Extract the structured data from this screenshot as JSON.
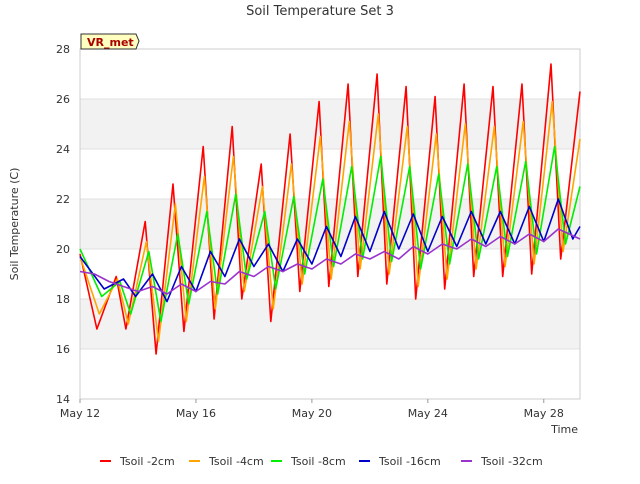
{
  "chart_data": {
    "type": "line",
    "title": "Soil Temperature Set 3",
    "xlabel": "Time",
    "ylabel": "Soil Temperature (C)",
    "station_badge": "VR_met",
    "ylim": [
      14,
      28
    ],
    "yticks": [
      14,
      16,
      18,
      20,
      22,
      24,
      26,
      28
    ],
    "xlim": [
      "2024-05-12",
      "2024-05-29 06:00"
    ],
    "xtick_dates": [
      "2024-05-12",
      "2024-05-16",
      "2024-05-20",
      "2024-05-24",
      "2024-05-28"
    ],
    "xtick_labels": [
      "May 12",
      "May 16",
      "May 20",
      "May 24",
      "May 28"
    ],
    "grid": "horizontal bands",
    "legend_position": "bottom",
    "series": [
      {
        "name": "Tsoil -2cm",
        "color": "#ff0000",
        "x": [
          "2024-05-12 00:00",
          "2024-05-12 14:00",
          "2024-05-13 06:00",
          "2024-05-13 14:00",
          "2024-05-14 06:00",
          "2024-05-14 15:00",
          "2024-05-15 05:00",
          "2024-05-15 14:00",
          "2024-05-16 06:00",
          "2024-05-16 15:00",
          "2024-05-17 06:00",
          "2024-05-17 14:00",
          "2024-05-18 06:00",
          "2024-05-18 14:00",
          "2024-05-19 06:00",
          "2024-05-19 14:00",
          "2024-05-20 06:00",
          "2024-05-20 14:00",
          "2024-05-21 06:00",
          "2024-05-21 14:00",
          "2024-05-22 06:00",
          "2024-05-22 14:00",
          "2024-05-23 06:00",
          "2024-05-23 14:00",
          "2024-05-24 06:00",
          "2024-05-24 14:00",
          "2024-05-25 06:00",
          "2024-05-25 14:00",
          "2024-05-26 06:00",
          "2024-05-26 14:00",
          "2024-05-27 06:00",
          "2024-05-27 14:00",
          "2024-05-28 06:00",
          "2024-05-28 14:00",
          "2024-05-29 06:00"
        ],
        "values": [
          19.8,
          16.8,
          18.9,
          16.8,
          21.1,
          15.8,
          22.6,
          16.7,
          24.1,
          17.2,
          24.9,
          18.0,
          23.4,
          17.1,
          24.6,
          18.3,
          25.9,
          18.5,
          26.6,
          18.9,
          27.0,
          18.6,
          26.5,
          18.0,
          26.1,
          18.4,
          26.6,
          18.9,
          26.5,
          18.9,
          26.6,
          19.0,
          27.4,
          19.6,
          26.3
        ]
      },
      {
        "name": "Tsoil -4cm",
        "color": "#ffa500",
        "x": [
          "2024-05-12 00:00",
          "2024-05-12 16:00",
          "2024-05-13 07:00",
          "2024-05-13 16:00",
          "2024-05-14 07:00",
          "2024-05-14 17:00",
          "2024-05-15 07:00",
          "2024-05-15 16:00",
          "2024-05-16 07:00",
          "2024-05-16 16:00",
          "2024-05-17 07:00",
          "2024-05-17 16:00",
          "2024-05-18 07:00",
          "2024-05-18 16:00",
          "2024-05-19 07:00",
          "2024-05-19 16:00",
          "2024-05-20 07:00",
          "2024-05-20 16:00",
          "2024-05-21 07:00",
          "2024-05-21 16:00",
          "2024-05-22 07:00",
          "2024-05-22 16:00",
          "2024-05-23 07:00",
          "2024-05-23 16:00",
          "2024-05-24 07:00",
          "2024-05-24 16:00",
          "2024-05-25 07:00",
          "2024-05-25 16:00",
          "2024-05-26 07:00",
          "2024-05-26 16:00",
          "2024-05-27 07:00",
          "2024-05-27 16:00",
          "2024-05-28 07:00",
          "2024-05-28 16:00",
          "2024-05-29 06:00"
        ],
        "values": [
          19.7,
          17.4,
          18.8,
          17.0,
          20.3,
          16.3,
          21.8,
          17.1,
          22.9,
          17.6,
          23.7,
          18.3,
          22.5,
          17.6,
          23.4,
          18.6,
          24.5,
          18.8,
          25.1,
          19.2,
          25.4,
          19.0,
          24.9,
          18.5,
          24.6,
          18.8,
          25.0,
          19.2,
          24.9,
          19.3,
          25.1,
          19.4,
          25.9,
          19.9,
          24.4
        ]
      },
      {
        "name": "Tsoil -8cm",
        "color": "#00ee00",
        "x": [
          "2024-05-12 00:00",
          "2024-05-12 18:00",
          "2024-05-13 09:00",
          "2024-05-13 18:00",
          "2024-05-14 09:00",
          "2024-05-14 19:00",
          "2024-05-15 09:00",
          "2024-05-15 18:00",
          "2024-05-16 09:00",
          "2024-05-16 18:00",
          "2024-05-17 09:00",
          "2024-05-17 18:00",
          "2024-05-18 09:00",
          "2024-05-18 18:00",
          "2024-05-19 09:00",
          "2024-05-19 18:00",
          "2024-05-20 09:00",
          "2024-05-20 18:00",
          "2024-05-21 09:00",
          "2024-05-21 18:00",
          "2024-05-22 09:00",
          "2024-05-22 18:00",
          "2024-05-23 09:00",
          "2024-05-23 18:00",
          "2024-05-24 09:00",
          "2024-05-24 18:00",
          "2024-05-25 09:00",
          "2024-05-25 18:00",
          "2024-05-26 09:00",
          "2024-05-26 18:00",
          "2024-05-27 09:00",
          "2024-05-27 18:00",
          "2024-05-28 09:00",
          "2024-05-28 18:00",
          "2024-05-29 06:00"
        ],
        "values": [
          20.0,
          18.1,
          18.7,
          17.4,
          19.9,
          17.1,
          20.6,
          17.8,
          21.5,
          18.2,
          22.2,
          18.8,
          21.5,
          18.4,
          22.1,
          19.0,
          22.8,
          19.3,
          23.3,
          19.6,
          23.7,
          19.5,
          23.3,
          19.2,
          23.0,
          19.4,
          23.4,
          19.6,
          23.3,
          19.7,
          23.5,
          19.8,
          24.1,
          20.2,
          22.5
        ]
      },
      {
        "name": "Tsoil -16cm",
        "color": "#0000cc",
        "x": [
          "2024-05-12 00:00",
          "2024-05-12 20:00",
          "2024-05-13 12:00",
          "2024-05-13 22:00",
          "2024-05-14 12:00",
          "2024-05-15 00:00",
          "2024-05-15 12:00",
          "2024-05-16 00:00",
          "2024-05-16 12:00",
          "2024-05-17 00:00",
          "2024-05-17 12:00",
          "2024-05-18 00:00",
          "2024-05-18 12:00",
          "2024-05-19 00:00",
          "2024-05-19 12:00",
          "2024-05-20 00:00",
          "2024-05-20 12:00",
          "2024-05-21 00:00",
          "2024-05-21 12:00",
          "2024-05-22 00:00",
          "2024-05-22 12:00",
          "2024-05-23 00:00",
          "2024-05-23 12:00",
          "2024-05-24 00:00",
          "2024-05-24 12:00",
          "2024-05-25 00:00",
          "2024-05-25 12:00",
          "2024-05-26 00:00",
          "2024-05-26 12:00",
          "2024-05-27 00:00",
          "2024-05-27 12:00",
          "2024-05-28 00:00",
          "2024-05-28 12:00",
          "2024-05-29 00:00",
          "2024-05-29 06:00"
        ],
        "values": [
          19.7,
          18.4,
          18.8,
          18.1,
          19.0,
          17.9,
          19.3,
          18.3,
          19.9,
          18.9,
          20.4,
          19.3,
          20.2,
          19.1,
          20.4,
          19.4,
          20.9,
          19.7,
          21.3,
          19.9,
          21.5,
          20.0,
          21.4,
          19.9,
          21.3,
          20.1,
          21.5,
          20.2,
          21.5,
          20.2,
          21.7,
          20.3,
          22.0,
          20.4,
          20.9
        ]
      },
      {
        "name": "Tsoil -32cm",
        "color": "#9933cc",
        "x": [
          "2024-05-12 00:00",
          "2024-05-12 12:00",
          "2024-05-13 00:00",
          "2024-05-13 12:00",
          "2024-05-14 00:00",
          "2024-05-14 12:00",
          "2024-05-15 00:00",
          "2024-05-15 12:00",
          "2024-05-16 00:00",
          "2024-05-16 12:00",
          "2024-05-17 00:00",
          "2024-05-17 12:00",
          "2024-05-18 00:00",
          "2024-05-18 12:00",
          "2024-05-19 00:00",
          "2024-05-19 12:00",
          "2024-05-20 00:00",
          "2024-05-20 12:00",
          "2024-05-21 00:00",
          "2024-05-21 12:00",
          "2024-05-22 00:00",
          "2024-05-22 12:00",
          "2024-05-23 00:00",
          "2024-05-23 12:00",
          "2024-05-24 00:00",
          "2024-05-24 12:00",
          "2024-05-25 00:00",
          "2024-05-25 12:00",
          "2024-05-26 00:00",
          "2024-05-26 12:00",
          "2024-05-27 00:00",
          "2024-05-27 12:00",
          "2024-05-28 00:00",
          "2024-05-28 12:00",
          "2024-05-29 06:00"
        ],
        "values": [
          19.1,
          19.0,
          18.7,
          18.5,
          18.3,
          18.5,
          18.2,
          18.6,
          18.3,
          18.7,
          18.6,
          19.1,
          18.9,
          19.3,
          19.1,
          19.4,
          19.2,
          19.6,
          19.4,
          19.8,
          19.6,
          19.9,
          19.6,
          20.1,
          19.8,
          20.2,
          20.0,
          20.4,
          20.1,
          20.5,
          20.2,
          20.6,
          20.3,
          20.8,
          20.4
        ]
      }
    ]
  }
}
